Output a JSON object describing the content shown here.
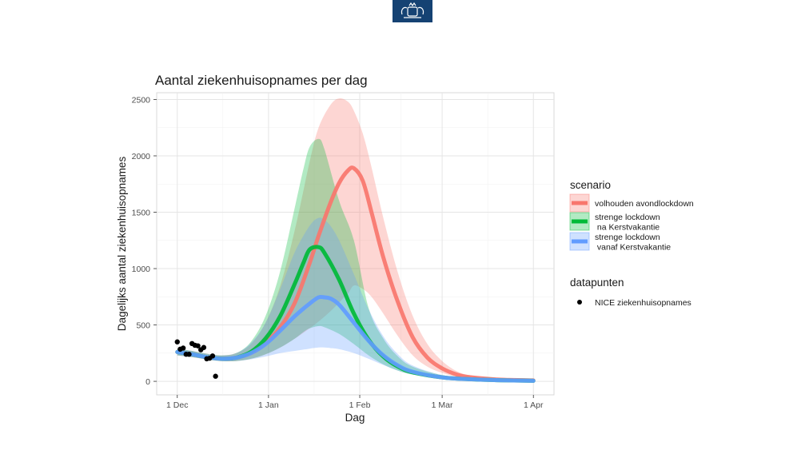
{
  "header": {
    "logo_icon": "rijksoverheid-coat-of-arms-logo"
  },
  "chart_data": {
    "type": "line",
    "title": "Aantal ziekenhuisopnames per dag",
    "xlabel": "Dag",
    "ylabel": "Dagelijks aantal ziekenhuisopnames",
    "x_ticks": [
      {
        "label": "1 Dec",
        "day": 0
      },
      {
        "label": "1 Jan",
        "day": 31
      },
      {
        "label": "1 Feb",
        "day": 62
      },
      {
        "label": "1 Mar",
        "day": 90
      },
      {
        "label": "1 Apr",
        "day": 121
      }
    ],
    "xlim_days_from_1_dec": [
      -7,
      128
    ],
    "y_ticks": [
      0,
      500,
      1000,
      1500,
      2000,
      2500
    ],
    "ylim": [
      -120,
      2560
    ],
    "grid": true,
    "legend_placement": "right",
    "legend_groups": [
      {
        "title": "scenario",
        "entries": [
          "volhouden avondlockdown",
          "strenge lockdown\n na Kerstvakantie",
          "strenge lockdown\n vanaf Kerstvakantie"
        ]
      },
      {
        "title": "datapunten",
        "entries": [
          "NICE ziekenhuisopnames"
        ]
      }
    ],
    "series": [
      {
        "name": "volhouden avondlockdown",
        "color": "#f8766d",
        "band_color": "#f8766d",
        "x": [
          0,
          5,
          10,
          15,
          20,
          25,
          30,
          35,
          40,
          45,
          48,
          52,
          55,
          58,
          60,
          63,
          66,
          70,
          75,
          80,
          85,
          90,
          95,
          100,
          110,
          121
        ],
        "y": [
          260,
          240,
          215,
          200,
          210,
          250,
          340,
          480,
          700,
          1050,
          1290,
          1580,
          1760,
          1870,
          1890,
          1780,
          1500,
          1100,
          700,
          390,
          210,
          115,
          60,
          35,
          15,
          8
        ],
        "lower": [
          230,
          215,
          195,
          180,
          180,
          200,
          240,
          300,
          380,
          470,
          530,
          620,
          700,
          780,
          850,
          820,
          750,
          600,
          400,
          230,
          130,
          75,
          40,
          20,
          10,
          5
        ],
        "upper": [
          290,
          270,
          245,
          230,
          250,
          330,
          520,
          850,
          1350,
          1950,
          2250,
          2450,
          2510,
          2480,
          2400,
          2200,
          1900,
          1450,
          960,
          580,
          330,
          180,
          90,
          50,
          20,
          10
        ]
      },
      {
        "name": "strenge lockdown\n na Kerstvakantie",
        "color": "#00ba38",
        "band_color": "#00ba38",
        "x": [
          0,
          5,
          10,
          15,
          20,
          25,
          30,
          35,
          40,
          43,
          45,
          48,
          50,
          55,
          60,
          65,
          70,
          75,
          80,
          90,
          100,
          110,
          121
        ],
        "y": [
          260,
          240,
          215,
          200,
          210,
          260,
          380,
          580,
          870,
          1060,
          1170,
          1190,
          1140,
          900,
          600,
          370,
          220,
          130,
          80,
          35,
          18,
          10,
          5
        ],
        "lower": [
          230,
          215,
          195,
          180,
          180,
          200,
          240,
          300,
          380,
          440,
          470,
          490,
          480,
          420,
          330,
          230,
          150,
          95,
          60,
          28,
          14,
          8,
          4
        ],
        "upper": [
          290,
          270,
          245,
          230,
          250,
          350,
          580,
          980,
          1550,
          1900,
          2080,
          2150,
          2060,
          1600,
          1250,
          650,
          380,
          220,
          130,
          55,
          25,
          12,
          6
        ]
      },
      {
        "name": "strenge lockdown\n vanaf Kerstvakantie",
        "color": "#619cff",
        "band_color": "#619cff",
        "x": [
          0,
          5,
          10,
          15,
          20,
          25,
          30,
          35,
          40,
          45,
          48,
          50,
          52,
          55,
          60,
          65,
          70,
          75,
          80,
          90,
          100,
          110,
          121
        ],
        "y": [
          260,
          240,
          215,
          200,
          210,
          250,
          330,
          450,
          580,
          690,
          745,
          745,
          735,
          680,
          520,
          360,
          230,
          140,
          85,
          35,
          18,
          10,
          5
        ],
        "lower": [
          230,
          215,
          195,
          180,
          180,
          195,
          220,
          250,
          270,
          290,
          300,
          300,
          295,
          285,
          250,
          200,
          145,
          95,
          60,
          28,
          14,
          8,
          4
        ],
        "upper": [
          290,
          270,
          245,
          230,
          250,
          340,
          520,
          820,
          1150,
          1380,
          1450,
          1430,
          1380,
          1250,
          950,
          640,
          400,
          240,
          140,
          55,
          25,
          12,
          6
        ]
      }
    ],
    "datapoints": {
      "name": "NICE ziekenhuisopnames",
      "color": "#000000",
      "x": [
        0,
        1,
        2,
        3,
        4,
        5,
        6,
        7,
        8,
        9,
        10,
        11,
        12,
        13
      ],
      "y": [
        350,
        285,
        295,
        240,
        240,
        335,
        320,
        315,
        280,
        300,
        200,
        205,
        225,
        45
      ]
    }
  }
}
